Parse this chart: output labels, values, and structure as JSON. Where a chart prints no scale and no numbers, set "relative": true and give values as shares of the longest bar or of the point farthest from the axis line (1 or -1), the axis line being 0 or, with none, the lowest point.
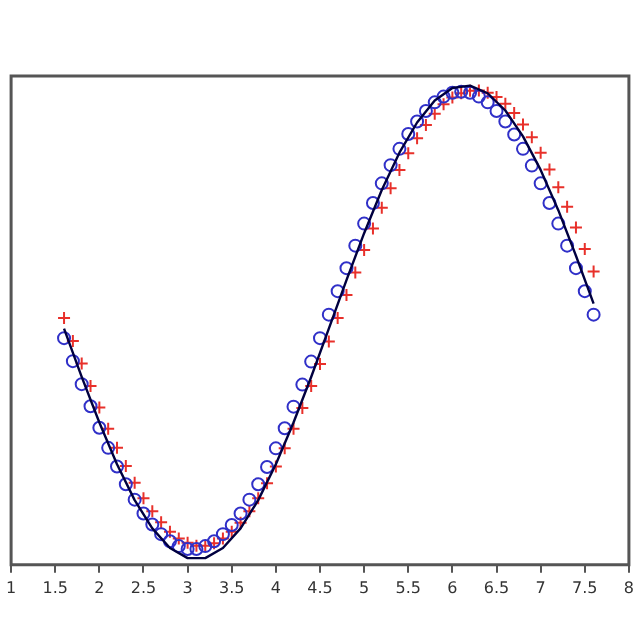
{
  "chart_data": {
    "type": "line",
    "relative": true,
    "xlim": [
      1,
      8
    ],
    "xticks": [
      1,
      1.5,
      2,
      2.5,
      3,
      3.5,
      4,
      4.5,
      5,
      5.5,
      6,
      6.5,
      7,
      7.5,
      8
    ],
    "tick_labels": "x",
    "grid": false,
    "legend": false,
    "series": [
      {
        "type": "line",
        "color": "#000040",
        "line_style": "solid",
        "marker": "none",
        "x": [
          1.6,
          1.8,
          2.0,
          2.2,
          2.4,
          2.6,
          2.8,
          3.0,
          3.2,
          3.4,
          3.6,
          3.8,
          4.0,
          4.2,
          4.4,
          4.6,
          4.8,
          5.0,
          5.2,
          5.4,
          5.6,
          5.8,
          6.0,
          6.2,
          6.4,
          6.6,
          6.8,
          7.0,
          7.2,
          7.4,
          7.6
        ],
        "values": [
          0.493,
          0.392,
          0.297,
          0.21,
          0.135,
          0.076,
          0.035,
          0.014,
          0.014,
          0.035,
          0.076,
          0.135,
          0.21,
          0.297,
          0.392,
          0.493,
          0.594,
          0.692,
          0.782,
          0.86,
          0.923,
          0.969,
          0.995,
          1,
          0.984,
          0.948,
          0.894,
          0.824,
          0.74,
          0.645,
          0.545
        ]
      },
      {
        "type": "scatter",
        "color": "#3030c8",
        "marker": "circle",
        "x": [
          1.6,
          1.7,
          1.8,
          1.9,
          2.0,
          2.1,
          2.2,
          2.3,
          2.4,
          2.5,
          2.6,
          2.7,
          2.8,
          2.9,
          3.0,
          3.1,
          3.2,
          3.3,
          3.4,
          3.5,
          3.6,
          3.7,
          3.8,
          3.9,
          4.0,
          4.1,
          4.2,
          4.3,
          4.4,
          4.5,
          4.6,
          4.7,
          4.8,
          4.9,
          5.0,
          5.1,
          5.2,
          5.3,
          5.4,
          5.5,
          5.6,
          5.7,
          5.8,
          5.9,
          6.0,
          6.1,
          6.2,
          6.3,
          6.4,
          6.5,
          6.6,
          6.7,
          6.8,
          6.9,
          7.0,
          7.1,
          7.2,
          7.3,
          7.4,
          7.5,
          7.6
        ],
        "values": [
          0.473,
          0.425,
          0.377,
          0.331,
          0.286,
          0.244,
          0.205,
          0.168,
          0.136,
          0.107,
          0.084,
          0.064,
          0.049,
          0.039,
          0.033,
          0.033,
          0.039,
          0.049,
          0.064,
          0.083,
          0.107,
          0.136,
          0.168,
          0.204,
          0.243,
          0.285,
          0.33,
          0.376,
          0.424,
          0.473,
          0.522,
          0.571,
          0.619,
          0.666,
          0.712,
          0.755,
          0.796,
          0.834,
          0.868,
          0.899,
          0.925,
          0.947,
          0.965,
          0.977,
          0.985,
          0.987,
          0.985,
          0.977,
          0.965,
          0.947,
          0.925,
          0.898,
          0.868,
          0.833,
          0.796,
          0.755,
          0.712,
          0.666,
          0.619,
          0.571,
          0.522
        ]
      },
      {
        "type": "scatter",
        "color": "#e8302a",
        "marker": "cross",
        "x": [
          1.6,
          1.7,
          1.8,
          1.9,
          2.0,
          2.1,
          2.2,
          2.3,
          2.4,
          2.5,
          2.6,
          2.7,
          2.8,
          2.9,
          3.0,
          3.1,
          3.2,
          3.3,
          3.4,
          3.5,
          3.6,
          3.7,
          3.8,
          3.9,
          4.0,
          4.1,
          4.2,
          4.3,
          4.4,
          4.5,
          4.6,
          4.7,
          4.8,
          4.9,
          5.0,
          5.1,
          5.2,
          5.3,
          5.4,
          5.5,
          5.6,
          5.7,
          5.8,
          5.9,
          6.0,
          6.1,
          6.2,
          6.3,
          6.4,
          6.5,
          6.6,
          6.7,
          6.8,
          6.9,
          7.0,
          7.1,
          7.2,
          7.3,
          7.4,
          7.5,
          7.6
        ],
        "values": [
          0.515,
          0.467,
          0.42,
          0.373,
          0.328,
          0.284,
          0.244,
          0.206,
          0.171,
          0.139,
          0.112,
          0.089,
          0.069,
          0.055,
          0.046,
          0.04,
          0.04,
          0.045,
          0.055,
          0.069,
          0.088,
          0.112,
          0.139,
          0.17,
          0.205,
          0.243,
          0.284,
          0.327,
          0.373,
          0.419,
          0.466,
          0.515,
          0.563,
          0.61,
          0.657,
          0.702,
          0.745,
          0.786,
          0.824,
          0.859,
          0.89,
          0.918,
          0.941,
          0.961,
          0.975,
          0.984,
          0.989,
          0.99,
          0.985,
          0.976,
          0.962,
          0.943,
          0.919,
          0.892,
          0.86,
          0.825,
          0.788,
          0.747,
          0.704,
          0.659,
          0.612
        ]
      }
    ]
  }
}
